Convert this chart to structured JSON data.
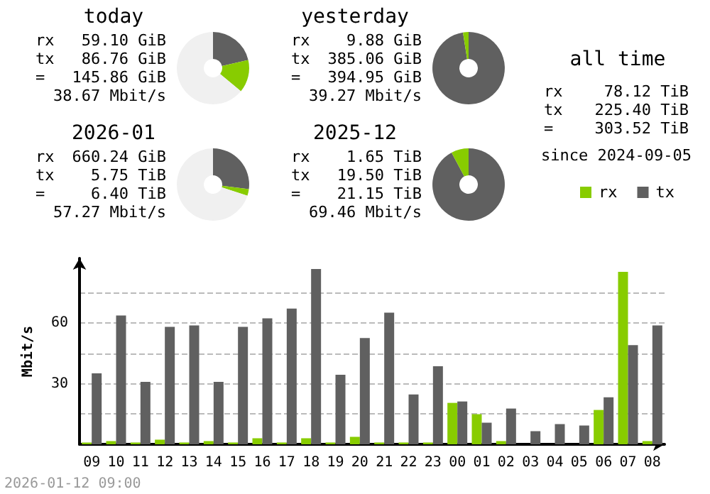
{
  "chart_data": [
    {
      "type": "donut",
      "title": "today",
      "categories": [
        null,
        null,
        null
      ],
      "values": [
        21.4,
        14.6,
        64
      ],
      "colors": [
        "#606060",
        "#88cc00",
        "#f0f0f0"
      ],
      "annotations": [
        "rx 59.10 GiB",
        "tx 86.76 GiB",
        "= 145.86 GiB",
        "38.67 Mbit/s"
      ]
    },
    {
      "type": "donut",
      "title": "yesterday",
      "categories": [
        null,
        null
      ],
      "values": [
        97.5,
        2.5
      ],
      "colors": [
        "#606060",
        "#88cc00"
      ],
      "annotations": [
        "rx 9.88 GiB",
        "tx 385.06 GiB",
        "= 394.95 GiB",
        "39.27 Mbit/s"
      ]
    },
    {
      "type": "donut",
      "title": "2026-01",
      "categories": [
        null,
        null,
        null
      ],
      "values": [
        27,
        3,
        70
      ],
      "colors": [
        "#606060",
        "#88cc00",
        "#f0f0f0"
      ],
      "annotations": [
        "rx 660.24 GiB",
        "tx 5.75 TiB",
        "= 6.40 TiB",
        "57.27 Mbit/s"
      ]
    },
    {
      "type": "donut",
      "title": "2025-12",
      "categories": [
        null,
        null
      ],
      "values": [
        92.2,
        7.8
      ],
      "colors": [
        "#606060",
        "#88cc00"
      ],
      "annotations": [
        "rx 1.65 TiB",
        "tx 19.50 TiB",
        "= 21.15 TiB",
        "69.46 Mbit/s"
      ]
    },
    {
      "type": "other",
      "title": "all time",
      "annotations": [
        "rx 78.12 TiB",
        "tx 225.40 TiB",
        "= 303.52 TiB",
        "since 2024-09-05"
      ]
    },
    {
      "type": "bar",
      "ylabel": "Mbit/s",
      "legend": "top right",
      "grid": "y",
      "categories": [
        "09",
        "10",
        "11",
        "12",
        "13",
        "14",
        "15",
        "16",
        "17",
        "18",
        "19",
        "20",
        "21",
        "22",
        "23",
        "00",
        "01",
        "02",
        "03",
        "04",
        "05",
        "06",
        "07",
        "08"
      ],
      "series": [
        {
          "name": "rx",
          "color": "#88cc00",
          "values": [
            0.9,
            1.6,
            0.9,
            2.3,
            0.9,
            1.6,
            0.9,
            3.0,
            0.9,
            3.0,
            0.9,
            3.7,
            0.9,
            0.9,
            0.9,
            20.5,
            14.9,
            1.6,
            0,
            0,
            0,
            17.0,
            85.3,
            1.6
          ]
        },
        {
          "name": "tx",
          "color": "#606060",
          "values": [
            35.1,
            63.7,
            30.9,
            58.1,
            58.8,
            30.9,
            58.1,
            62.3,
            67.2,
            86.7,
            34.4,
            52.6,
            65.1,
            24.7,
            38.6,
            21.2,
            10.7,
            17.7,
            6.5,
            10.0,
            9.3,
            23.3,
            49.1,
            58.8
          ]
        }
      ],
      "ylim": [
        0,
        92
      ],
      "yticks": [
        {
          "value": 15,
          "label": null
        },
        30,
        {
          "value": 45,
          "label": null
        },
        60,
        {
          "value": 75,
          "label": null
        }
      ],
      "annotations": [
        "2026-01-12 09:00"
      ]
    }
  ]
}
